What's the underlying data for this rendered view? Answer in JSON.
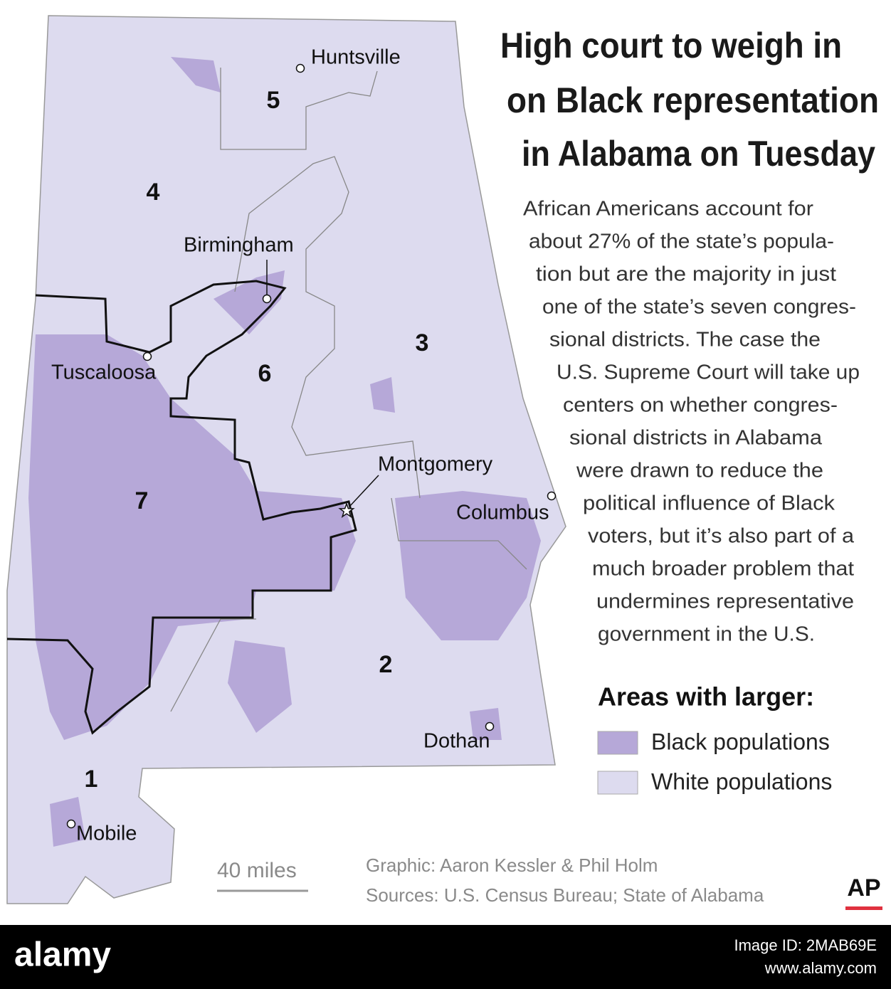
{
  "title_lines": [
    "High court to weigh in",
    "on Black representation",
    "in Alabama on Tuesday"
  ],
  "body_lines": [
    "African Americans account for",
    "about 27% of the state’s popula-",
    "tion but are the majority in just",
    "one of the state’s seven congres-",
    "sional districts. The case the",
    "U.S. Supreme Court will take up",
    "centers on whether congres-",
    "sional districts in Alabama",
    "were drawn to reduce the",
    "political influence of Black",
    "voters, but it’s also part of a",
    "much broader problem that",
    "undermines representative",
    "government in the U.S."
  ],
  "districts": [
    "1",
    "2",
    "3",
    "4",
    "5",
    "6",
    "7"
  ],
  "cities": [
    "Huntsville",
    "Birmingham",
    "Tuscaloosa",
    "Montgomery",
    "Columbus",
    "Dothan",
    "Mobile"
  ],
  "legend": {
    "title": "Areas with larger:",
    "items": [
      {
        "label": "Black populations",
        "color": "#b6a8d8"
      },
      {
        "label": "White populations",
        "color": "#dddbef"
      }
    ]
  },
  "scale": "40 miles",
  "credits": [
    "Graphic: Aaron Kessler & Phil Holm",
    "Sources: U.S. Census Bureau; State of Alabama"
  ],
  "logo": "AP",
  "watermark": {
    "brand": "alamy",
    "image_id": "Image ID: 2MAB69E",
    "url": "www.alamy.com"
  }
}
